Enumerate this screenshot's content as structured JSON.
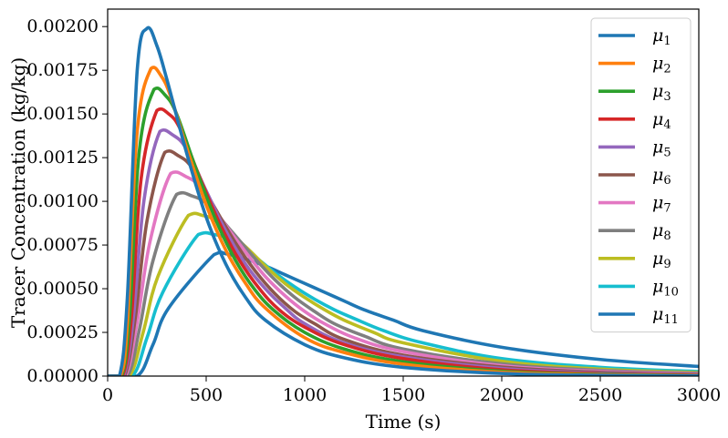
{
  "chart_data": {
    "type": "line",
    "title": "",
    "xlabel": "Time (s)",
    "ylabel": "Tracer Concentration (kg/kg)",
    "xlim": [
      0,
      3000
    ],
    "ylim": [
      0,
      0.0021
    ],
    "xticks": [
      0,
      500,
      1000,
      1500,
      2000,
      2500,
      3000
    ],
    "xtick_labels": [
      "0",
      "500",
      "1000",
      "1500",
      "2000",
      "2500",
      "3000"
    ],
    "yticks": [
      0,
      0.00025,
      0.0005,
      0.00075,
      0.001,
      0.00125,
      0.0015,
      0.00175,
      0.002
    ],
    "ytick_labels": [
      "0.00000",
      "0.00025",
      "0.00050",
      "0.00075",
      "0.00100",
      "0.00125",
      "0.00150",
      "0.00175",
      "0.00200"
    ],
    "grid": false,
    "legend_position": "top-right",
    "series": [
      {
        "name": "μ1",
        "symbol": "μ",
        "subscript": "1",
        "color": "#1f77b4",
        "x": [
          0,
          60,
          100,
          150,
          200,
          250,
          300,
          400,
          500,
          600,
          700,
          800,
          1000,
          1200,
          1500,
          2000,
          2500,
          3000
        ],
        "values": [
          0,
          0,
          0.00045,
          0.00175,
          0.00199,
          0.00189,
          0.0017,
          0.00128,
          0.00091,
          0.00064,
          0.00045,
          0.00032,
          0.00018,
          0.000105,
          5e-05,
          1.5e-05,
          4e-06,
          1e-06
        ]
      },
      {
        "name": "μ2",
        "symbol": "μ",
        "subscript": "2",
        "color": "#ff7f0e",
        "x": [
          0,
          65,
          100,
          150,
          220,
          270,
          320,
          400,
          500,
          600,
          700,
          800,
          1000,
          1200,
          1500,
          2000,
          2500,
          3000
        ],
        "values": [
          0,
          0,
          0.0003,
          0.0014,
          0.00176,
          0.00172,
          0.0016,
          0.00131,
          0.00098,
          0.00072,
          0.00053,
          0.00039,
          0.00022,
          0.000135,
          6.8e-05,
          2.2e-05,
          7e-06,
          2e-06
        ]
      },
      {
        "name": "μ3",
        "symbol": "μ",
        "subscript": "3",
        "color": "#2ca02c",
        "x": [
          0,
          70,
          110,
          160,
          235,
          290,
          350,
          450,
          550,
          650,
          750,
          850,
          1000,
          1200,
          1500,
          2000,
          2500,
          3000
        ],
        "values": [
          0,
          0,
          0.00032,
          0.00128,
          0.00164,
          0.00161,
          0.0015,
          0.00118,
          0.00089,
          0.00066,
          0.00049,
          0.00037,
          0.00025,
          0.000155,
          8.2e-05,
          2.8e-05,
          1e-05,
          3e-06
        ]
      },
      {
        "name": "μ4",
        "symbol": "μ",
        "subscript": "4",
        "color": "#d62728",
        "x": [
          0,
          75,
          120,
          170,
          250,
          310,
          370,
          470,
          570,
          670,
          770,
          870,
          1000,
          1200,
          1500,
          2000,
          2500,
          3000
        ],
        "values": [
          0,
          0,
          0.00033,
          0.00113,
          0.00152,
          0.0015,
          0.00141,
          0.00113,
          0.00087,
          0.00066,
          0.0005,
          0.00038,
          0.00028,
          0.00018,
          0.0001,
          3.6e-05,
          1.3e-05,
          5e-06
        ]
      },
      {
        "name": "μ5",
        "symbol": "μ",
        "subscript": "5",
        "color": "#9467bd",
        "x": [
          0,
          80,
          130,
          185,
          265,
          330,
          400,
          500,
          600,
          700,
          800,
          900,
          1000,
          1200,
          1500,
          2000,
          2500,
          3000
        ],
        "values": [
          0,
          0,
          0.00033,
          0.00101,
          0.0014,
          0.00138,
          0.0013,
          0.00106,
          0.00083,
          0.00064,
          0.0005,
          0.00039,
          0.0003,
          0.00019,
          0.00011,
          4.4e-05,
          1.7e-05,
          7e-06
        ]
      },
      {
        "name": "μ6",
        "symbol": "μ",
        "subscript": "6",
        "color": "#8c564b",
        "x": [
          0,
          85,
          140,
          200,
          290,
          360,
          430,
          530,
          650,
          750,
          850,
          950,
          1050,
          1200,
          1500,
          2000,
          2500,
          3000
        ],
        "values": [
          0,
          0,
          0.00033,
          0.00089,
          0.00128,
          0.00126,
          0.00119,
          0.00099,
          0.00076,
          0.0006,
          0.00047,
          0.00037,
          0.0003,
          0.00021,
          0.00012,
          5.2e-05,
          2.2e-05,
          9e-06
        ]
      },
      {
        "name": "μ7",
        "symbol": "μ",
        "subscript": "7",
        "color": "#e377c2",
        "x": [
          0,
          90,
          150,
          215,
          320,
          400,
          470,
          570,
          700,
          800,
          900,
          1000,
          1100,
          1250,
          1500,
          2000,
          2500,
          3000
        ],
        "values": [
          0,
          0,
          0.00031,
          0.00077,
          0.00116,
          0.00114,
          0.00108,
          0.00091,
          0.00071,
          0.00057,
          0.00046,
          0.00037,
          0.0003,
          0.00022,
          0.00014,
          6e-05,
          2.7e-05,
          1.2e-05
        ]
      },
      {
        "name": "μ8",
        "symbol": "μ",
        "subscript": "8",
        "color": "#7f7f7f",
        "x": [
          0,
          100,
          160,
          230,
          350,
          430,
          510,
          620,
          750,
          850,
          950,
          1050,
          1150,
          1300,
          1500,
          2000,
          2500,
          3000
        ],
        "values": [
          0,
          0,
          0.00026,
          0.00066,
          0.00104,
          0.00103,
          0.00098,
          0.00084,
          0.00067,
          0.00055,
          0.00045,
          0.00037,
          0.0003,
          0.00023,
          0.000155,
          7e-05,
          3.3e-05,
          1.6e-05
        ]
      },
      {
        "name": "μ9",
        "symbol": "μ",
        "subscript": "9",
        "color": "#bcbd22",
        "x": [
          0,
          110,
          180,
          255,
          410,
          480,
          560,
          700,
          800,
          900,
          1000,
          1100,
          1200,
          1350,
          1500,
          2000,
          2500,
          3000
        ],
        "values": [
          0,
          0,
          0.00025,
          0.00057,
          0.00092,
          0.00092,
          0.00088,
          0.00074,
          0.00063,
          0.00053,
          0.00045,
          0.00038,
          0.00032,
          0.00025,
          0.00019,
          8.5e-05,
          4e-05,
          2e-05
        ]
      },
      {
        "name": "μ10",
        "symbol": "μ",
        "subscript": "10",
        "color": "#17becf",
        "x": [
          0,
          125,
          200,
          280,
          460,
          540,
          620,
          750,
          850,
          950,
          1050,
          1150,
          1250,
          1400,
          1600,
          2000,
          2500,
          3000
        ],
        "values": [
          0,
          0,
          0.00022,
          0.00048,
          0.00081,
          0.00081,
          0.00078,
          0.00068,
          0.00059,
          0.00051,
          0.00044,
          0.00038,
          0.00033,
          0.00026,
          0.00019,
          0.0001,
          5e-05,
          2.6e-05
        ]
      },
      {
        "name": "μ11",
        "symbol": "μ",
        "subscript": "11",
        "color": "#1f77b4",
        "x": [
          0,
          150,
          230,
          310,
          540,
          600,
          700,
          800,
          900,
          1000,
          1100,
          1200,
          1300,
          1450,
          1600,
          2000,
          2500,
          3000
        ],
        "values": [
          0,
          0,
          0.00018,
          0.00039,
          0.000695,
          0.0007,
          0.00067,
          0.00063,
          0.00058,
          0.00053,
          0.00048,
          0.00043,
          0.00038,
          0.00032,
          0.00026,
          0.000165,
          9.5e-05,
          5.5e-05
        ]
      }
    ]
  }
}
